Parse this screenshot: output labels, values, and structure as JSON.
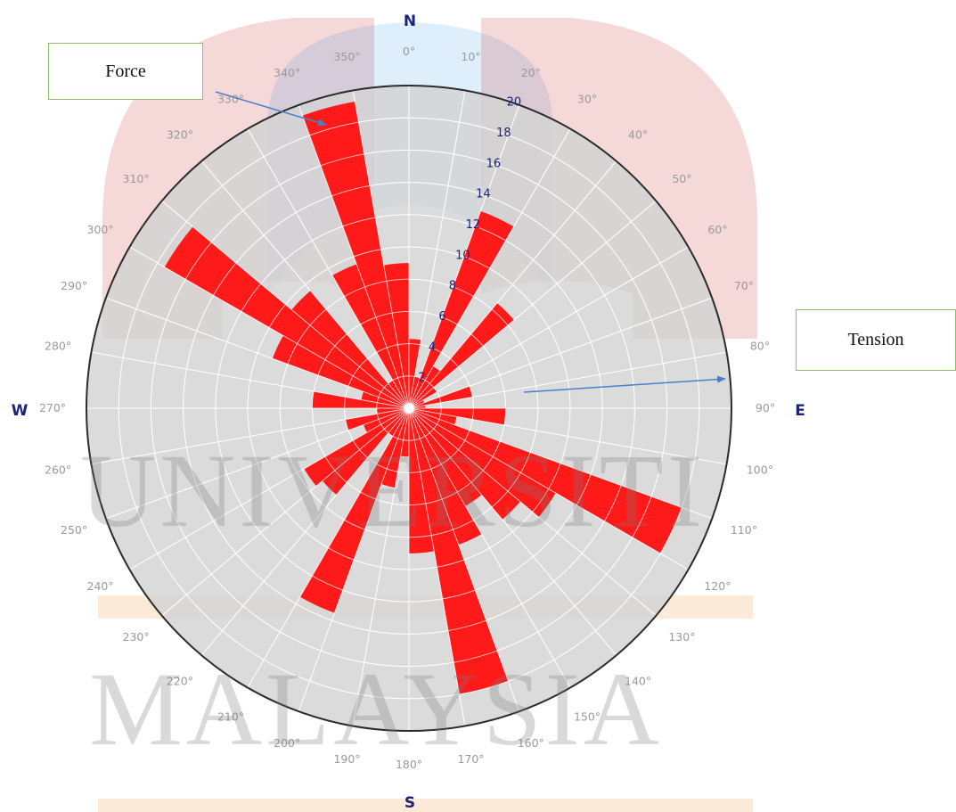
{
  "callouts": {
    "force": "Force",
    "tension": "Tension"
  },
  "watermark": {
    "line1": "UNIVERSITI",
    "line2": "MALAYSIA"
  },
  "colors": {
    "petal": "#ff1a1a",
    "disk": "#d3d3d3",
    "ring": "#2b2b2b",
    "grid": "#ffffff",
    "compass": "#1a237e",
    "arrow": "#4a7fc9"
  },
  "chart_data": {
    "type": "rose",
    "title": "",
    "bin_width_deg": 10,
    "radial_range": [
      0,
      20
    ],
    "radial_ticks": [
      2,
      4,
      6,
      8,
      10,
      12,
      14,
      16,
      18,
      20
    ],
    "compass_labels": {
      "N": "N",
      "E": "E",
      "S": "S",
      "W": "W"
    },
    "angle_labels": [
      "0°",
      "10°",
      "20°",
      "30°",
      "40°",
      "50°",
      "60°",
      "70°",
      "80°",
      "90°",
      "100°",
      "110°",
      "120°",
      "130°",
      "140°",
      "150°",
      "160°",
      "170°",
      "180°",
      "190°",
      "200°",
      "210°",
      "220°",
      "230°",
      "240°",
      "250°",
      "260°",
      "270°",
      "280°",
      "290°",
      "300°",
      "310°",
      "320°",
      "330°",
      "340°",
      "350°"
    ],
    "bins": [
      {
        "from": 0,
        "to": 10,
        "value": 4.3
      },
      {
        "from": 10,
        "to": 20,
        "value": 2
      },
      {
        "from": 20,
        "to": 30,
        "value": 13
      },
      {
        "from": 30,
        "to": 40,
        "value": 3
      },
      {
        "from": 40,
        "to": 50,
        "value": 8.5
      },
      {
        "from": 50,
        "to": 60,
        "value": 2
      },
      {
        "from": 60,
        "to": 70,
        "value": 1
      },
      {
        "from": 70,
        "to": 80,
        "value": 4
      },
      {
        "from": 80,
        "to": 90,
        "value": 1
      },
      {
        "from": 90,
        "to": 100,
        "value": 6
      },
      {
        "from": 100,
        "to": 110,
        "value": 3
      },
      {
        "from": 110,
        "to": 120,
        "value": 18
      },
      {
        "from": 120,
        "to": 130,
        "value": 10.5
      },
      {
        "from": 130,
        "to": 140,
        "value": 9
      },
      {
        "from": 140,
        "to": 150,
        "value": 7
      },
      {
        "from": 150,
        "to": 160,
        "value": 9
      },
      {
        "from": 160,
        "to": 170,
        "value": 18
      },
      {
        "from": 170,
        "to": 180,
        "value": 9
      },
      {
        "from": 180,
        "to": 190,
        "value": 3
      },
      {
        "from": 190,
        "to": 200,
        "value": 5
      },
      {
        "from": 200,
        "to": 210,
        "value": 13.5
      },
      {
        "from": 210,
        "to": 220,
        "value": 2
      },
      {
        "from": 220,
        "to": 230,
        "value": 7
      },
      {
        "from": 230,
        "to": 240,
        "value": 7.5
      },
      {
        "from": 240,
        "to": 250,
        "value": 3
      },
      {
        "from": 250,
        "to": 260,
        "value": 4
      },
      {
        "from": 260,
        "to": 270,
        "value": 2
      },
      {
        "from": 270,
        "to": 280,
        "value": 6
      },
      {
        "from": 280,
        "to": 290,
        "value": 3
      },
      {
        "from": 290,
        "to": 300,
        "value": 9
      },
      {
        "from": 300,
        "to": 310,
        "value": 17.5
      },
      {
        "from": 310,
        "to": 320,
        "value": 9.5
      },
      {
        "from": 320,
        "to": 330,
        "value": 2
      },
      {
        "from": 330,
        "to": 340,
        "value": 9.5
      },
      {
        "from": 340,
        "to": 350,
        "value": 19.3
      },
      {
        "from": 350,
        "to": 360,
        "value": 9
      }
    ]
  }
}
